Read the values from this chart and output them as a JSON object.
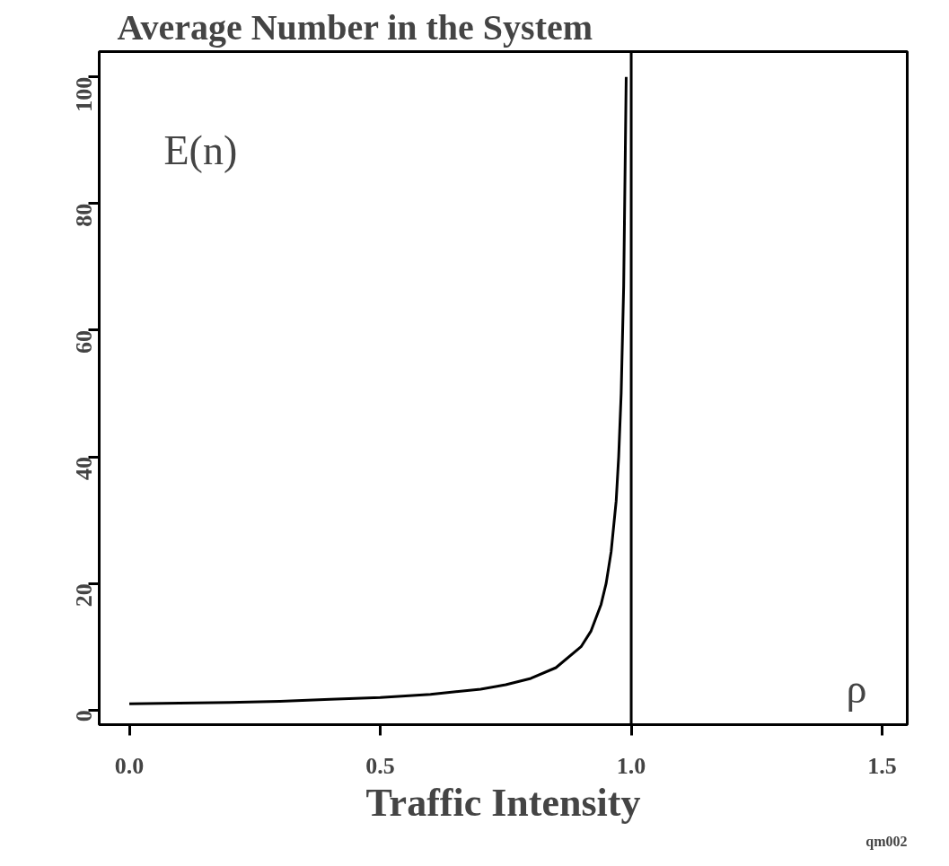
{
  "chart_data": {
    "type": "line",
    "title": "Average Number in the System",
    "xlabel": "Traffic Intensity",
    "x": [
      0,
      0.1,
      0.2,
      0.3,
      0.4,
      0.5,
      0.6,
      0.7,
      0.75,
      0.8,
      0.85,
      0.9,
      0.92,
      0.94,
      0.95,
      0.96,
      0.97,
      0.975,
      0.98,
      0.985,
      0.99
    ],
    "series": [
      {
        "color": "#000000",
        "values": [
          1,
          1.1,
          1.2,
          1.4,
          1.7,
          2,
          2.5,
          3.3,
          4,
          5,
          6.7,
          10,
          12.5,
          16.7,
          20,
          25,
          33,
          40,
          50,
          67,
          100
        ]
      }
    ],
    "xlim": [
      -0.06,
      1.55
    ],
    "ylim": [
      -2.3,
      104
    ],
    "xticks": [
      {
        "value": 0,
        "label": "0.0"
      },
      0.5,
      {
        "value": 1,
        "label": "1.0"
      },
      1.5
    ],
    "yticks": [
      0,
      20,
      40,
      60,
      80,
      100
    ],
    "ref_lines": [
      {
        "axis": "x",
        "value": 1,
        "color": "#000000"
      }
    ],
    "annotations": [
      "E(n)",
      "ρ",
      "qm002"
    ],
    "grid": false,
    "line_style": "solid",
    "marker": "none"
  }
}
